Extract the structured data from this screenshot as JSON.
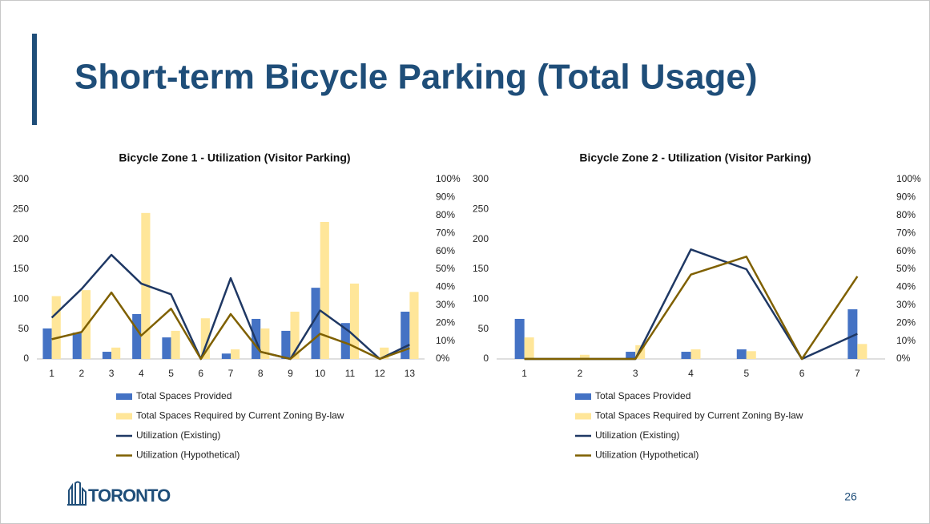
{
  "title": "Short-term Bicycle Parking (Total Usage)",
  "logo": "TORONTO",
  "page_number": "26",
  "chart_data": [
    {
      "type": "combo",
      "title": "Bicycle Zone 1 - Utilization (Visitor Parking)",
      "categories": [
        "1",
        "2",
        "3",
        "4",
        "5",
        "6",
        "7",
        "8",
        "9",
        "10",
        "11",
        "12",
        "13"
      ],
      "ylim": [
        0,
        300
      ],
      "yticks": [
        0,
        50,
        100,
        150,
        200,
        250,
        300
      ],
      "y2lim": [
        0,
        100
      ],
      "y2ticks": [
        {
          "value": 0,
          "label": "0%"
        },
        {
          "value": 10,
          "label": "10%"
        },
        {
          "value": 20,
          "label": "20%"
        },
        {
          "value": 30,
          "label": "30%"
        },
        {
          "value": 40,
          "label": "40%"
        },
        {
          "value": 50,
          "label": "50%"
        },
        {
          "value": 60,
          "label": "60%"
        },
        {
          "value": 70,
          "label": "70%"
        },
        {
          "value": 80,
          "label": "80%"
        },
        {
          "value": 90,
          "label": "90%"
        },
        {
          "value": 100,
          "label": "100%"
        }
      ],
      "grid": false,
      "legend": "bottom",
      "series": [
        {
          "name": "Total Spaces Provided",
          "type": "bar",
          "color": "#4472c4",
          "values": [
            51,
            44,
            12,
            75,
            36,
            0,
            9,
            67,
            47,
            119,
            60,
            0,
            79
          ]
        },
        {
          "name": "Total Spaces Required by Current Zoning By-law",
          "type": "bar",
          "color": "#ffe699",
          "values": [
            105,
            115,
            19,
            244,
            47,
            68,
            16,
            51,
            79,
            229,
            126,
            19,
            112
          ]
        },
        {
          "name": "Utilization (Existing)",
          "type": "line",
          "axis": "y2",
          "color": "#1f3864",
          "values": [
            23,
            39,
            58,
            42,
            36,
            0,
            45,
            4,
            0,
            27,
            15,
            0,
            8
          ]
        },
        {
          "name": "Utilization (Hypothetical)",
          "type": "line",
          "axis": "y2",
          "color": "#7f6000",
          "values": [
            11,
            15,
            37,
            13,
            28,
            0,
            25,
            4,
            0,
            14,
            8,
            0,
            6
          ]
        }
      ]
    },
    {
      "type": "combo",
      "title": "Bicycle Zone 2 - Utilization (Visitor Parking)",
      "categories": [
        "1",
        "2",
        "3",
        "4",
        "5",
        "6",
        "7"
      ],
      "ylim": [
        0,
        300
      ],
      "yticks": [
        0,
        50,
        100,
        150,
        200,
        250,
        300
      ],
      "y2lim": [
        0,
        100
      ],
      "y2ticks": [
        {
          "value": 0,
          "label": "0%"
        },
        {
          "value": 10,
          "label": "10%"
        },
        {
          "value": 20,
          "label": "20%"
        },
        {
          "value": 30,
          "label": "30%"
        },
        {
          "value": 40,
          "label": "40%"
        },
        {
          "value": 50,
          "label": "50%"
        },
        {
          "value": 60,
          "label": "60%"
        },
        {
          "value": 70,
          "label": "70%"
        },
        {
          "value": 80,
          "label": "80%"
        },
        {
          "value": 90,
          "label": "90%"
        },
        {
          "value": 100,
          "label": "100%"
        }
      ],
      "grid": false,
      "legend": "bottom",
      "series": [
        {
          "name": "Total Spaces Provided",
          "type": "bar",
          "color": "#4472c4",
          "values": [
            67,
            0,
            12,
            12,
            16,
            0,
            83
          ]
        },
        {
          "name": "Total Spaces Required by Current Zoning By-law",
          "type": "bar",
          "color": "#ffe699",
          "values": [
            36,
            7,
            23,
            16,
            13,
            0,
            25
          ]
        },
        {
          "name": "Utilization (Existing)",
          "type": "line",
          "axis": "y2",
          "color": "#1f3864",
          "values": [
            0,
            0,
            0,
            61,
            50,
            0,
            14
          ]
        },
        {
          "name": "Utilization (Hypothetical)",
          "type": "line",
          "axis": "y2",
          "color": "#7f6000",
          "values": [
            0,
            0,
            0,
            47,
            57,
            0,
            46
          ]
        }
      ]
    }
  ]
}
